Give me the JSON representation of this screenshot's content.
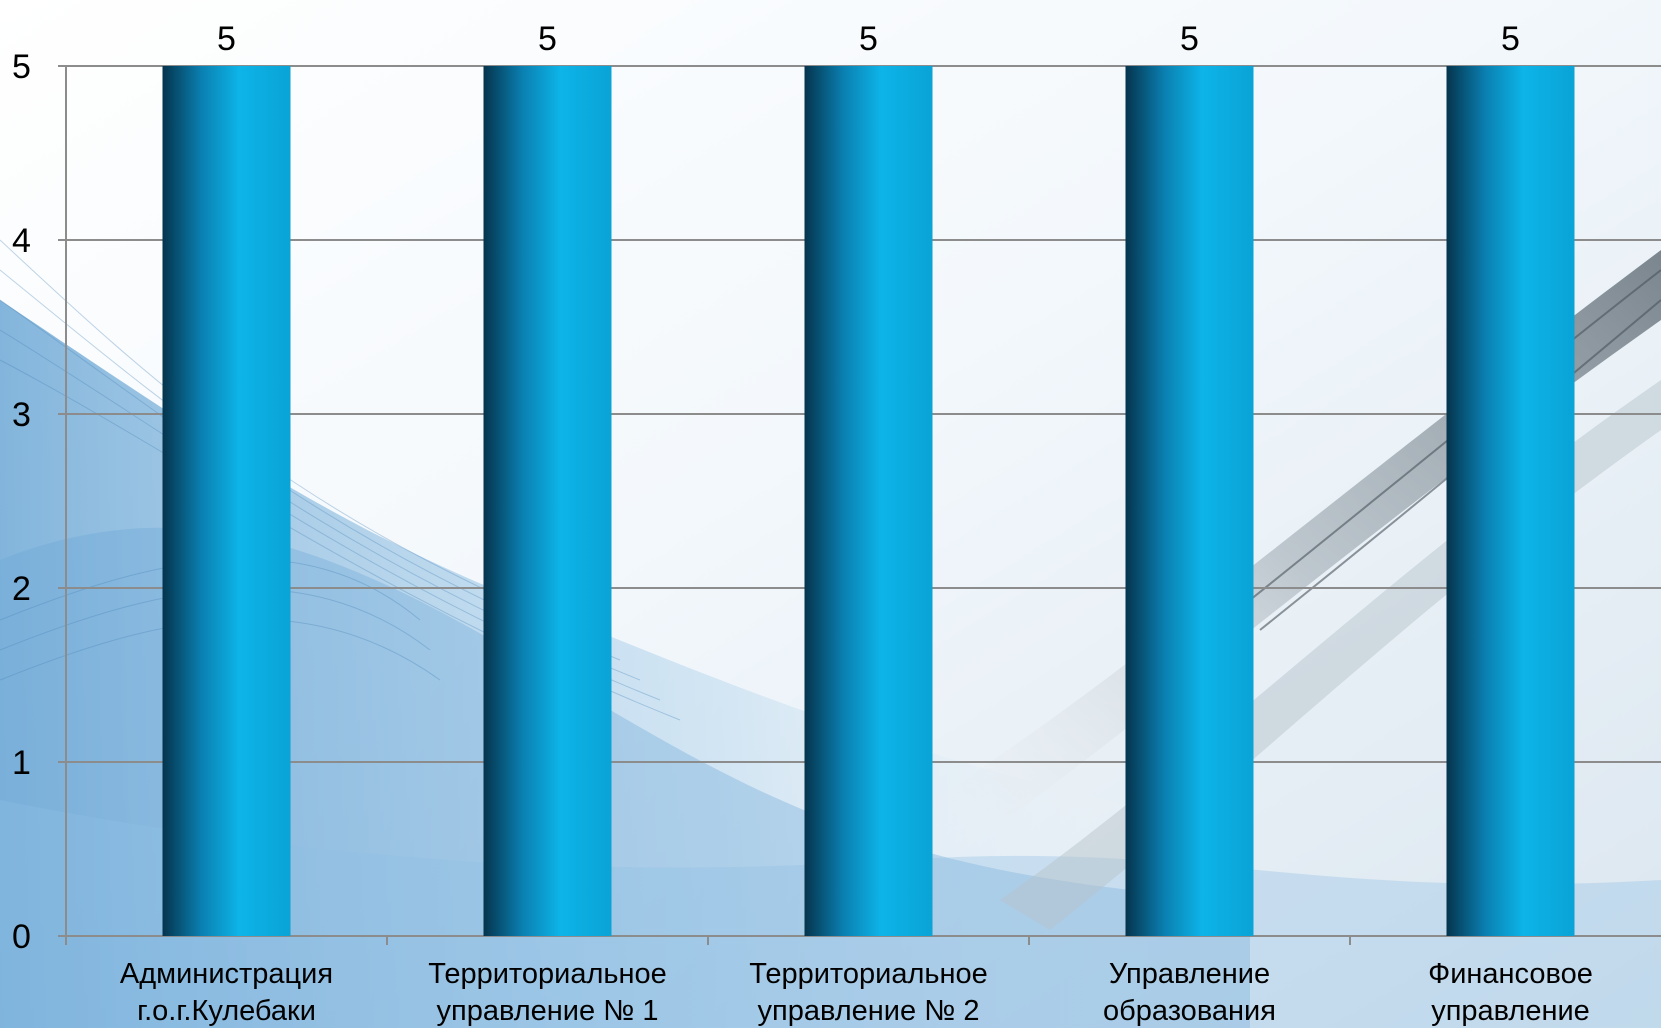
{
  "chart_data": {
    "type": "bar",
    "categories": [
      [
        "Администрация",
        "г.о.г.Кулебаки"
      ],
      [
        "Территориальное",
        "управление № 1"
      ],
      [
        "Территориальное",
        "управление № 2"
      ],
      [
        "Управление",
        "образования"
      ],
      [
        "Финансовое",
        "управление"
      ]
    ],
    "values": [
      5,
      5,
      5,
      5,
      5
    ],
    "ylim": [
      0,
      5
    ],
    "yticks": [
      0,
      1,
      2,
      3,
      4,
      5
    ],
    "data_labels": true,
    "grid": true,
    "legend": "none",
    "title": "",
    "xlabel": "",
    "ylabel": "",
    "bar_color": "#0aa3d6"
  }
}
